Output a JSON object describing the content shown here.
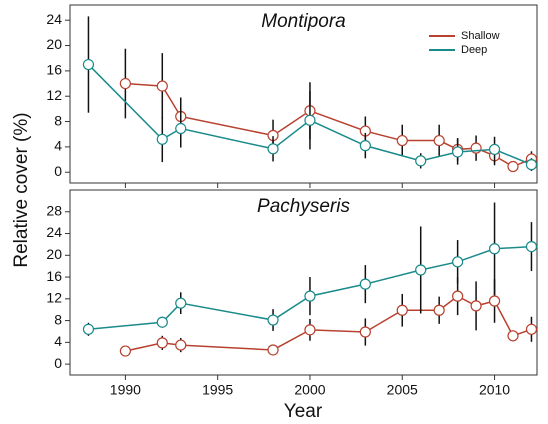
{
  "chart_data": [
    {
      "type": "line",
      "title": "Montipora",
      "y_label": "Relative cover (%)",
      "xlim": [
        1987,
        2012.3
      ],
      "xticks": [
        1990,
        1995,
        2000,
        2005,
        2010
      ],
      "ylim": [
        -1.7,
        26.4
      ],
      "yticks": [
        0,
        4,
        8,
        12,
        16,
        20,
        24
      ],
      "legend": "upper right",
      "series": [
        {
          "name": "Shallow",
          "color": "#b8412f",
          "x": [
            1990,
            1992,
            1993,
            1998,
            2000,
            2003,
            2005,
            2007,
            2008,
            2009,
            2010,
            2011,
            2012
          ],
          "values": [
            14.0,
            13.6,
            8.8,
            5.8,
            9.7,
            6.5,
            5.0,
            5.0,
            3.6,
            3.8,
            2.6,
            0.9,
            2.1
          ],
          "errors": [
            5.5,
            5.2,
            3.0,
            2.5,
            4.5,
            2.3,
            2.5,
            2.5,
            1.8,
            2.0,
            1.5,
            0.8,
            1.2
          ]
        },
        {
          "name": "Deep",
          "color": "#1a8a8a",
          "x": [
            1988,
            1992,
            1993,
            1998,
            2000,
            2003,
            2006,
            2008,
            2010,
            2012
          ],
          "values": [
            17.0,
            5.2,
            6.9,
            3.7,
            8.2,
            4.2,
            1.8,
            3.2,
            3.6,
            1.2
          ],
          "errors": [
            7.6,
            3.6,
            3.0,
            2.0,
            4.6,
            2.0,
            1.2,
            2.0,
            2.0,
            1.0
          ]
        }
      ]
    },
    {
      "type": "line",
      "title": "Pachyseris",
      "x_label": "Year",
      "xlim": [
        1987,
        2012.3
      ],
      "xticks": [
        1990,
        1995,
        2000,
        2005,
        2010
      ],
      "ylim": [
        -2,
        32
      ],
      "yticks": [
        0,
        4,
        8,
        12,
        16,
        20,
        24,
        28
      ],
      "series": [
        {
          "color": "#b8412f",
          "x": [
            1990,
            1992,
            1993,
            1998,
            2000,
            2003,
            2005,
            2007,
            2008,
            2009,
            2010,
            2011,
            2012
          ],
          "values": [
            2.4,
            3.9,
            3.5,
            2.6,
            6.3,
            5.9,
            9.9,
            9.9,
            12.5,
            10.7,
            11.6,
            5.2,
            6.4
          ],
          "errors": [
            0.3,
            1.3,
            1.3,
            0.4,
            2.0,
            2.5,
            3.0,
            2.5,
            3.5,
            4.5,
            4.0,
            1.0,
            2.3
          ]
        },
        {
          "color": "#1a8a8a",
          "x": [
            1988,
            1992,
            1993,
            1998,
            2000,
            2003,
            2006,
            2008,
            2010,
            2012
          ],
          "values": [
            6.4,
            7.7,
            11.2,
            8.1,
            12.5,
            14.7,
            17.3,
            18.8,
            21.2,
            21.6
          ],
          "errors": [
            1.2,
            1.0,
            2.0,
            2.0,
            3.5,
            3.5,
            8.0,
            4.0,
            8.5,
            4.5
          ]
        }
      ]
    }
  ]
}
